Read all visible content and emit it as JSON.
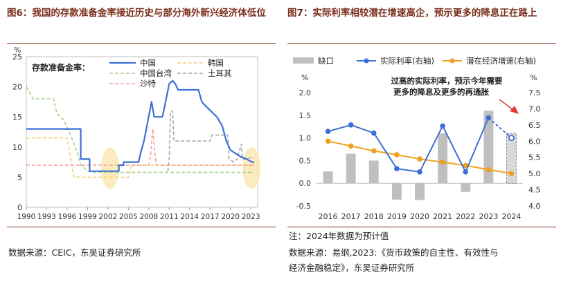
{
  "left": {
    "title": "图6：我国的存款准备金率接近历史与部分海外新兴经济体低位",
    "footnote": "数据来源：CEIC，东吴证券研究所",
    "colors": {
      "china": "#3d6fd6",
      "korea": "#f5cf7a",
      "taiwan": "#a8d08d",
      "turkey": "#a6a6a6",
      "saudi": "#f4a09a",
      "highlight": "#fbe8b4"
    },
    "chart_data": {
      "type": "line",
      "title": "存款准备金率：",
      "ylabel": "%",
      "xlim": [
        1990,
        2024
      ],
      "ylim": [
        0,
        25
      ],
      "yticks": [
        0,
        5,
        10,
        15,
        20,
        25
      ],
      "xticks": [
        1990,
        1993,
        1996,
        1999,
        2002,
        2005,
        2008,
        2011,
        2014,
        2017,
        2020,
        2023
      ],
      "highlights": [
        2002.3,
        2023.1
      ],
      "series": [
        {
          "name": "中国",
          "key": "china",
          "dashed": false,
          "points": [
            [
              1990,
              13
            ],
            [
              1998,
              13
            ],
            [
              1998,
              8
            ],
            [
              1999.3,
              8
            ],
            [
              1999.3,
              6
            ],
            [
              2003.6,
              6
            ],
            [
              2003.6,
              7
            ],
            [
              2004.3,
              7
            ],
            [
              2004.3,
              7.5
            ],
            [
              2006.5,
              7.5
            ],
            [
              2006.8,
              9
            ],
            [
              2007.3,
              11
            ],
            [
              2007.9,
              14.5
            ],
            [
              2008.4,
              17.5
            ],
            [
              2008.8,
              15
            ],
            [
              2010,
              15
            ],
            [
              2010.2,
              16
            ],
            [
              2011,
              20.5
            ],
            [
              2011.5,
              21
            ],
            [
              2011.9,
              20.5
            ],
            [
              2012.3,
              19.5
            ],
            [
              2015.3,
              19.5
            ],
            [
              2015.8,
              17.5
            ],
            [
              2016.2,
              17
            ],
            [
              2018,
              15
            ],
            [
              2018.8,
              13.5
            ],
            [
              2019.4,
              11
            ],
            [
              2020,
              9.5
            ],
            [
              2021.5,
              8.4
            ],
            [
              2022.4,
              8
            ],
            [
              2023,
              7.6
            ],
            [
              2023.5,
              7.4
            ]
          ]
        },
        {
          "name": "韩国",
          "key": "korea",
          "dashed": true,
          "points": [
            [
              1990,
              11.5
            ],
            [
              1996,
              11.5
            ],
            [
              1996.7,
              7
            ],
            [
              1997,
              5
            ],
            [
              2005,
              5
            ],
            [
              2005.5,
              7
            ],
            [
              2023.5,
              7
            ]
          ]
        },
        {
          "name": "中国台湾",
          "key": "taiwan",
          "dashed": true,
          "points": [
            [
              1990,
              20
            ],
            [
              1991,
              18
            ],
            [
              1994,
              18
            ],
            [
              1994.5,
              15.5
            ],
            [
              1995.5,
              14.5
            ],
            [
              1996.5,
              12
            ],
            [
              1997.5,
              9
            ],
            [
              1998,
              7
            ],
            [
              1999,
              6
            ],
            [
              2000,
              5.8
            ],
            [
              2023.5,
              5.8
            ]
          ]
        },
        {
          "name": "土耳其",
          "key": "turkey",
          "dashed": true,
          "points": [
            [
              2010.8,
              6
            ],
            [
              2011,
              8
            ],
            [
              2011.2,
              16
            ],
            [
              2011.5,
              16
            ],
            [
              2011.7,
              11
            ],
            [
              2012.2,
              11
            ],
            [
              2017,
              11
            ],
            [
              2017.3,
              12
            ],
            [
              2019.6,
              12
            ],
            [
              2019.8,
              8
            ],
            [
              2020.5,
              7.5
            ],
            [
              2021,
              8
            ],
            [
              2021.6,
              10.5
            ],
            [
              2021.8,
              8
            ],
            [
              2022.2,
              8
            ],
            [
              2022.5,
              8.2
            ],
            [
              2023.5,
              8.2
            ]
          ]
        },
        {
          "name": "沙特",
          "key": "saudi",
          "dashed": true,
          "points": [
            [
              1990,
              7
            ],
            [
              2008,
              7
            ],
            [
              2008.3,
              9
            ],
            [
              2008.6,
              13
            ],
            [
              2008.9,
              9
            ],
            [
              2009.1,
              7
            ],
            [
              2023.5,
              7
            ]
          ]
        }
      ]
    }
  },
  "right": {
    "title": "图7：实际利率相较潜在增速高企，预示更多的降息正在路上",
    "note": "注：2024年数据为预计值",
    "source_line1": "数据来源：易纲,2023:《货币政策的自主性、有效性与",
    "source_line2": "经济金融稳定》，东吴证券研究所",
    "annotation": {
      "line1": "过高的实际利率，预示今年需要",
      "line2": "更多的降息及更多的再通胀"
    },
    "colors": {
      "gap": "#bfbfbf",
      "gap_estimate": "#d9d9d9",
      "real": "#3d6fd6",
      "potential": "#f0a020",
      "arrow": "#e03c31"
    },
    "chart_data": {
      "type": "bar+line",
      "categories": [
        "2016",
        "2017",
        "2018",
        "2019",
        "2020",
        "2021",
        "2022",
        "2023",
        "2024"
      ],
      "estimate_category": "2024",
      "y_left": {
        "label": "%",
        "range": [
          -0.5,
          2.0
        ],
        "ticks": [
          "-0.5",
          "0.0",
          "0.5",
          "1.0",
          "1.5",
          "2.0"
        ]
      },
      "y_right": {
        "label": "%",
        "range": [
          4.0,
          7.5
        ],
        "ticks": [
          "4.0",
          "4.5",
          "5.0",
          "5.5",
          "6.0",
          "6.5",
          "7.0",
          "7.5"
        ]
      },
      "series": [
        {
          "name": "缺口",
          "axis": "left",
          "kind": "bar",
          "values": [
            0.26,
            0.65,
            0.5,
            -0.36,
            -0.37,
            1.1,
            -0.19,
            1.6,
            1.1
          ]
        },
        {
          "name": "实际利率(右轴)",
          "axis": "right",
          "kind": "line",
          "values": [
            6.3,
            6.5,
            6.25,
            5.15,
            5.05,
            6.47,
            5.05,
            6.72,
            6.1
          ]
        },
        {
          "name": "潜在经济增速(右轴)",
          "axis": "right",
          "kind": "line",
          "values": [
            6.0,
            5.85,
            5.7,
            5.58,
            5.45,
            5.35,
            5.25,
            5.12,
            5.0
          ]
        }
      ]
    }
  }
}
